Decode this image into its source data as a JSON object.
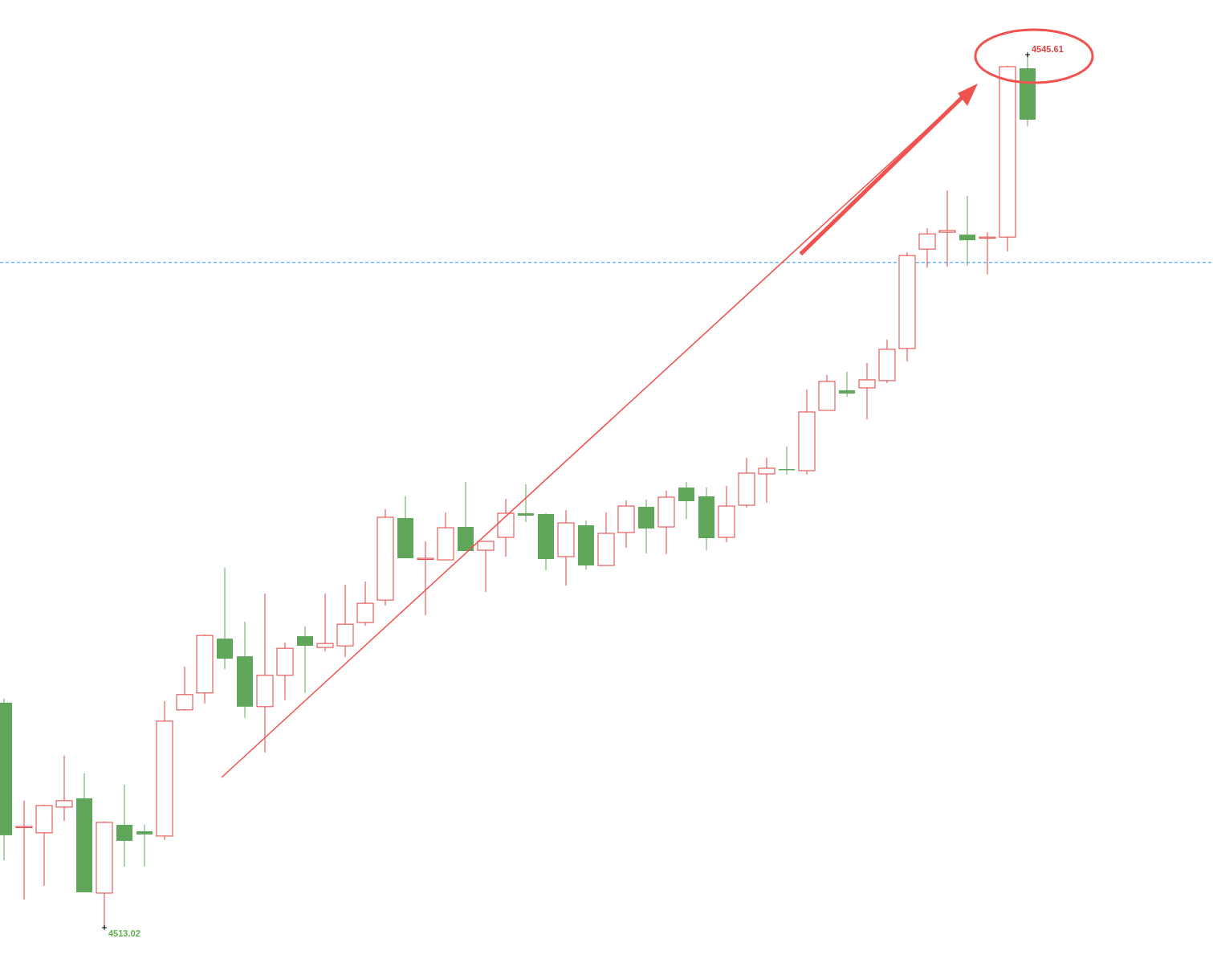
{
  "chart_data": {
    "type": "candlestick",
    "categories": [
      null,
      null,
      null,
      null,
      null,
      null,
      null,
      null,
      null,
      null,
      null,
      null,
      null,
      null,
      null,
      null,
      null,
      null,
      null,
      null,
      null,
      null,
      null,
      null,
      null,
      null,
      null,
      null,
      null,
      null,
      null,
      null,
      null,
      null,
      null,
      null,
      null,
      null,
      null,
      null,
      null,
      null,
      null,
      null,
      null,
      null,
      null,
      null,
      null,
      null,
      null,
      null
    ],
    "ohlc": [
      [
        4521.42,
        4521.57,
        4515.54,
        4516.47
      ],
      [
        4516.8,
        4517.76,
        4514.07,
        4516.8
      ],
      [
        4516.56,
        4517.61,
        4514.58,
        4517.58
      ],
      [
        4517.52,
        4519.44,
        4517.01,
        4517.76
      ],
      [
        4517.85,
        4518.78,
        4514.34,
        4514.34
      ],
      [
        4514.31,
        4516.98,
        4513.02,
        4516.95
      ],
      [
        4516.86,
        4518.36,
        4515.3,
        4516.26
      ],
      [
        4516.62,
        4516.86,
        4515.3,
        4516.5
      ],
      [
        4516.44,
        4521.48,
        4516.29,
        4520.73
      ],
      [
        4521.15,
        4522.76,
        4521.12,
        4521.72
      ],
      [
        4521.78,
        4523.96,
        4521.39,
        4523.93
      ],
      [
        4523.81,
        4526.45,
        4522.67,
        4523.06
      ],
      [
        4523.15,
        4524.44,
        4520.85,
        4521.27
      ],
      [
        4521.27,
        4525.49,
        4519.56,
        4522.44
      ],
      [
        4522.44,
        4523.66,
        4521.51,
        4523.45
      ],
      [
        4523.9,
        4524.26,
        4521.78,
        4523.54
      ],
      [
        4523.48,
        4525.49,
        4523.33,
        4523.63
      ],
      [
        4523.54,
        4525.82,
        4523.12,
        4524.35
      ],
      [
        4524.41,
        4525.94,
        4524.29,
        4525.13
      ],
      [
        4525.25,
        4528.64,
        4525.04,
        4528.34
      ],
      [
        4528.31,
        4529.12,
        4526.81,
        4526.81
      ],
      [
        4526.81,
        4527.44,
        4524.68,
        4526.81
      ],
      [
        4526.75,
        4528.52,
        4526.75,
        4527.95
      ],
      [
        4527.98,
        4529.66,
        4527.08,
        4527.08
      ],
      [
        4527.11,
        4527.44,
        4525.55,
        4527.44
      ],
      [
        4527.59,
        4529.03,
        4526.87,
        4528.49
      ],
      [
        4528.49,
        4529.57,
        4528.16,
        4528.4
      ],
      [
        4528.46,
        4528.49,
        4526.36,
        4526.78
      ],
      [
        4526.87,
        4528.61,
        4525.79,
        4528.13
      ],
      [
        4528.04,
        4528.22,
        4526.39,
        4526.54
      ],
      [
        4526.54,
        4528.52,
        4526.54,
        4527.74
      ],
      [
        4527.77,
        4528.97,
        4527.2,
        4528.76
      ],
      [
        4528.73,
        4529.0,
        4526.99,
        4527.92
      ],
      [
        4527.98,
        4529.33,
        4526.96,
        4529.09
      ],
      [
        4529.45,
        4529.66,
        4528.28,
        4528.94
      ],
      [
        4529.12,
        4529.45,
        4527.11,
        4527.56
      ],
      [
        4527.59,
        4529.51,
        4527.41,
        4528.76
      ],
      [
        4528.79,
        4530.56,
        4528.7,
        4529.99
      ],
      [
        4529.96,
        4530.56,
        4528.88,
        4530.17
      ],
      [
        4530.14,
        4530.98,
        4529.93,
        4530.11
      ],
      [
        4530.08,
        4533.11,
        4529.93,
        4532.27
      ],
      [
        4532.33,
        4533.65,
        4532.33,
        4533.41
      ],
      [
        4533.08,
        4533.77,
        4532.84,
        4532.96
      ],
      [
        4533.17,
        4534.1,
        4532.0,
        4533.47
      ],
      [
        4533.44,
        4534.97,
        4533.35,
        4534.61
      ],
      [
        4534.64,
        4538.23,
        4534.16,
        4538.11
      ],
      [
        4538.35,
        4539.13,
        4537.66,
        4538.92
      ],
      [
        4538.98,
        4540.54,
        4537.69,
        4539.04
      ],
      [
        4538.89,
        4540.33,
        4537.72,
        4538.68
      ],
      [
        4538.8,
        4538.98,
        4537.4,
        4538.8
      ],
      [
        4538.8,
        4545.19,
        4538.26,
        4545.16
      ],
      [
        4545.1,
        4545.61,
        4542.94,
        4543.18
      ]
    ],
    "ref_lines": [
      {
        "axis": "y",
        "value": 4537.85,
        "color": "#1e90ff",
        "line_style": "dashed"
      }
    ],
    "annotations": [
      "4545.61",
      "4513.02"
    ]
  }
}
